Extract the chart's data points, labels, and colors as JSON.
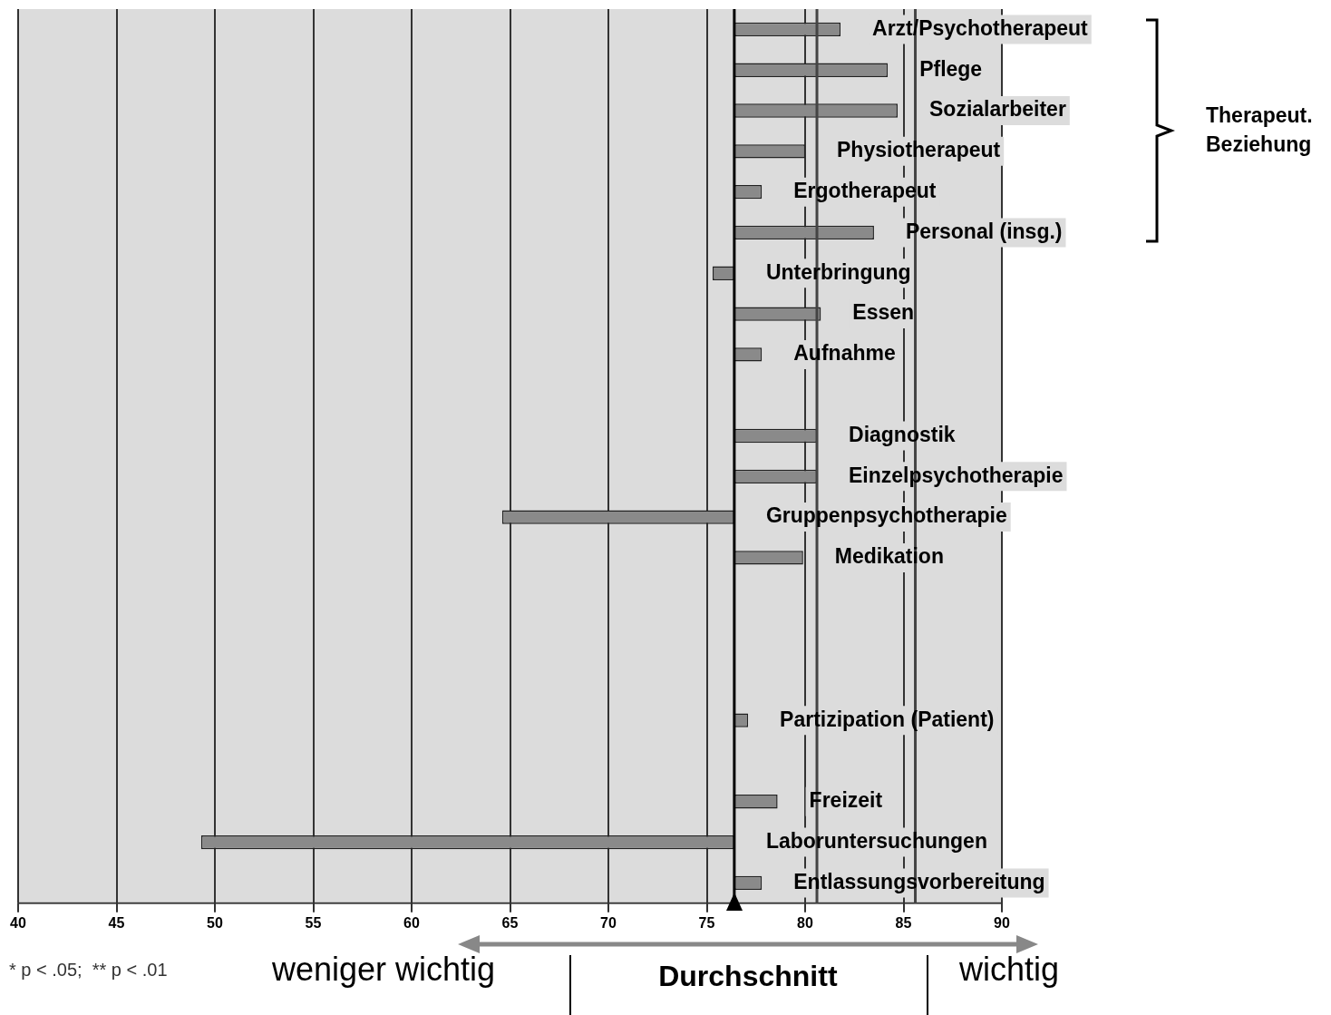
{
  "chart_data": {
    "type": "bar",
    "orientation": "horizontal",
    "categories": [
      "Arzt/Psychotherapeut",
      "Pflege",
      "Sozialarbeiter",
      "Physiotherapeut",
      "Ergotherapeut",
      "Personal (insg.)",
      "Unterbringung",
      "Essen",
      "Aufnahme",
      null,
      "Diagnostik",
      "Einzelpsychotherapie",
      "Gruppenpsychotherapie",
      "Medikation",
      null,
      null,
      null,
      "Partizipation (Patient)",
      null,
      "Freizeit",
      "Laboruntersuchungen",
      "Entlassungsvorbereitung"
    ],
    "values": [
      5.4,
      7.8,
      8.3,
      3.6,
      1.4,
      7.1,
      -1.1,
      4.4,
      1.4,
      null,
      4.2,
      4.2,
      -11.8,
      3.5,
      null,
      null,
      null,
      0.7,
      null,
      2.2,
      -27.1,
      1.4
    ],
    "base": [
      76.4,
      76.4,
      76.4,
      76.4,
      76.4,
      76.4,
      76.4,
      76.4,
      76.4,
      null,
      76.4,
      76.4,
      76.4,
      76.4,
      null,
      null,
      null,
      76.4,
      null,
      76.4,
      76.4,
      76.4
    ],
    "color": "#8a8a8a",
    "xlim": [
      40,
      90
    ],
    "xticks": [
      40,
      45,
      50,
      55,
      60,
      65,
      70,
      75,
      80,
      85,
      90
    ],
    "grid": "x",
    "legend": false,
    "tick_labels": "x",
    "ref_lines": [
      {
        "axis": "x",
        "value": 76.4,
        "label": "Durchschnitt",
        "color": "#000000"
      },
      {
        "axis": "x",
        "value": 80.6,
        "color": "#444444"
      },
      {
        "axis": "x",
        "value": 85.6,
        "color": "#444444"
      }
    ],
    "annotations": [
      "* p < .05;  ** p < .01",
      "weniger wichtig",
      "wichtig",
      "Therapeut. Beziehung"
    ]
  }
}
